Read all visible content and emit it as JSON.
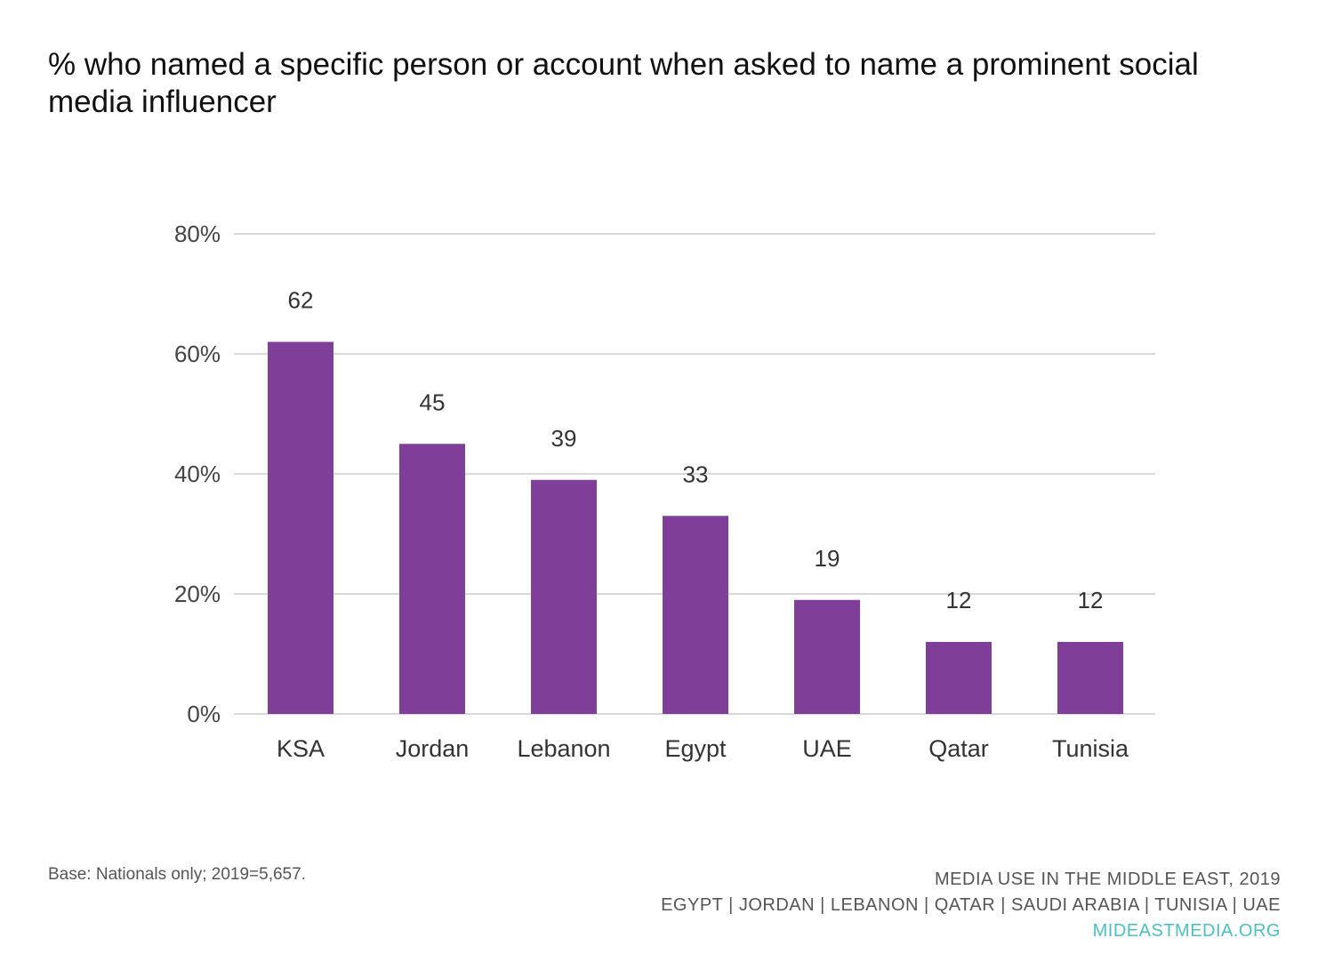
{
  "title": "% who named a specific person or account when asked to name a prominent social media influencer",
  "footer": {
    "base_note": "Base: Nationals only; 2019=5,657.",
    "source_line1": "MEDIA USE IN THE MIDDLE EAST, 2019",
    "source_line2": "EGYPT | JORDAN | LEBANON | QATAR | SAUDI ARABIA | TUNISIA | UAE",
    "link": "MIDEASTMEDIA.ORG"
  },
  "colors": {
    "bar": "#7f3f98",
    "grid": "#d9d9d9",
    "link": "#4dbfbf"
  },
  "chart_data": {
    "type": "bar",
    "title": "% who named a specific person or account when asked to name a prominent social media influencer",
    "categories": [
      "KSA",
      "Jordan",
      "Lebanon",
      "Egypt",
      "UAE",
      "Qatar",
      "Tunisia"
    ],
    "values": [
      62,
      45,
      39,
      33,
      19,
      12,
      12
    ],
    "data_labels": [
      "62",
      "45",
      "39",
      "33",
      "19",
      "12",
      "12"
    ],
    "xlabel": "",
    "ylabel": "",
    "ylim": [
      0,
      80
    ],
    "yticks": [
      0,
      20,
      40,
      60,
      80
    ],
    "ytick_labels": [
      "0%",
      "20%",
      "40%",
      "60%",
      "80%"
    ],
    "grid": true,
    "legend": "none"
  }
}
